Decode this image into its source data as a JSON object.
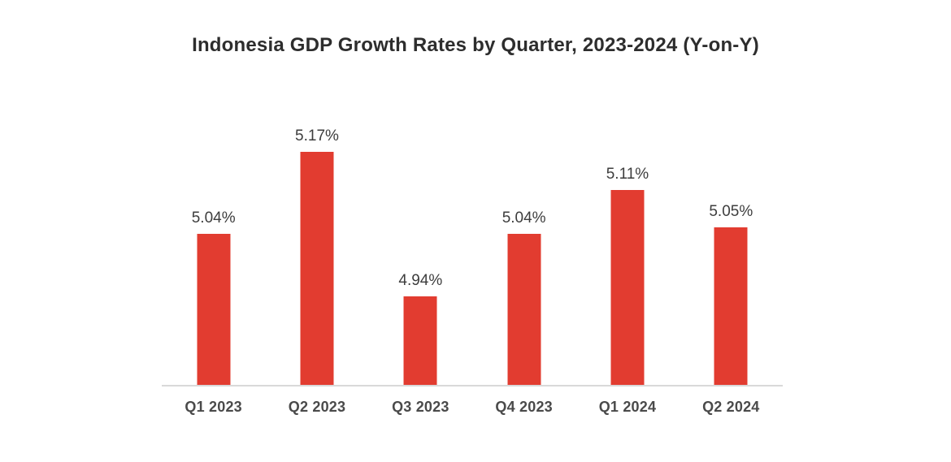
{
  "chart_data": {
    "type": "bar",
    "title": "Indonesia GDP Growth Rates by Quarter, 2023-2024 (Y-on-Y)",
    "categories": [
      "Q1 2023",
      "Q2 2023",
      "Q3 2023",
      "Q4 2023",
      "Q1 2024",
      "Q2 2024"
    ],
    "values": [
      5.04,
      5.17,
      4.94,
      5.04,
      5.11,
      5.05
    ],
    "value_labels": [
      "5.04%",
      "5.17%",
      "4.94%",
      "5.04%",
      "5.11%",
      "5.05%"
    ],
    "xlabel": "",
    "ylabel": "",
    "ylim": [
      4.8,
      5.2
    ],
    "grid": false,
    "legend": false,
    "colors": {
      "bar": "#E23C30",
      "title_text": "#2d2d2d",
      "value_label_text": "#3d3d3d",
      "category_label_text": "#4a4a4a",
      "axis_line": "#d9d9d9",
      "background": "#ffffff"
    }
  }
}
